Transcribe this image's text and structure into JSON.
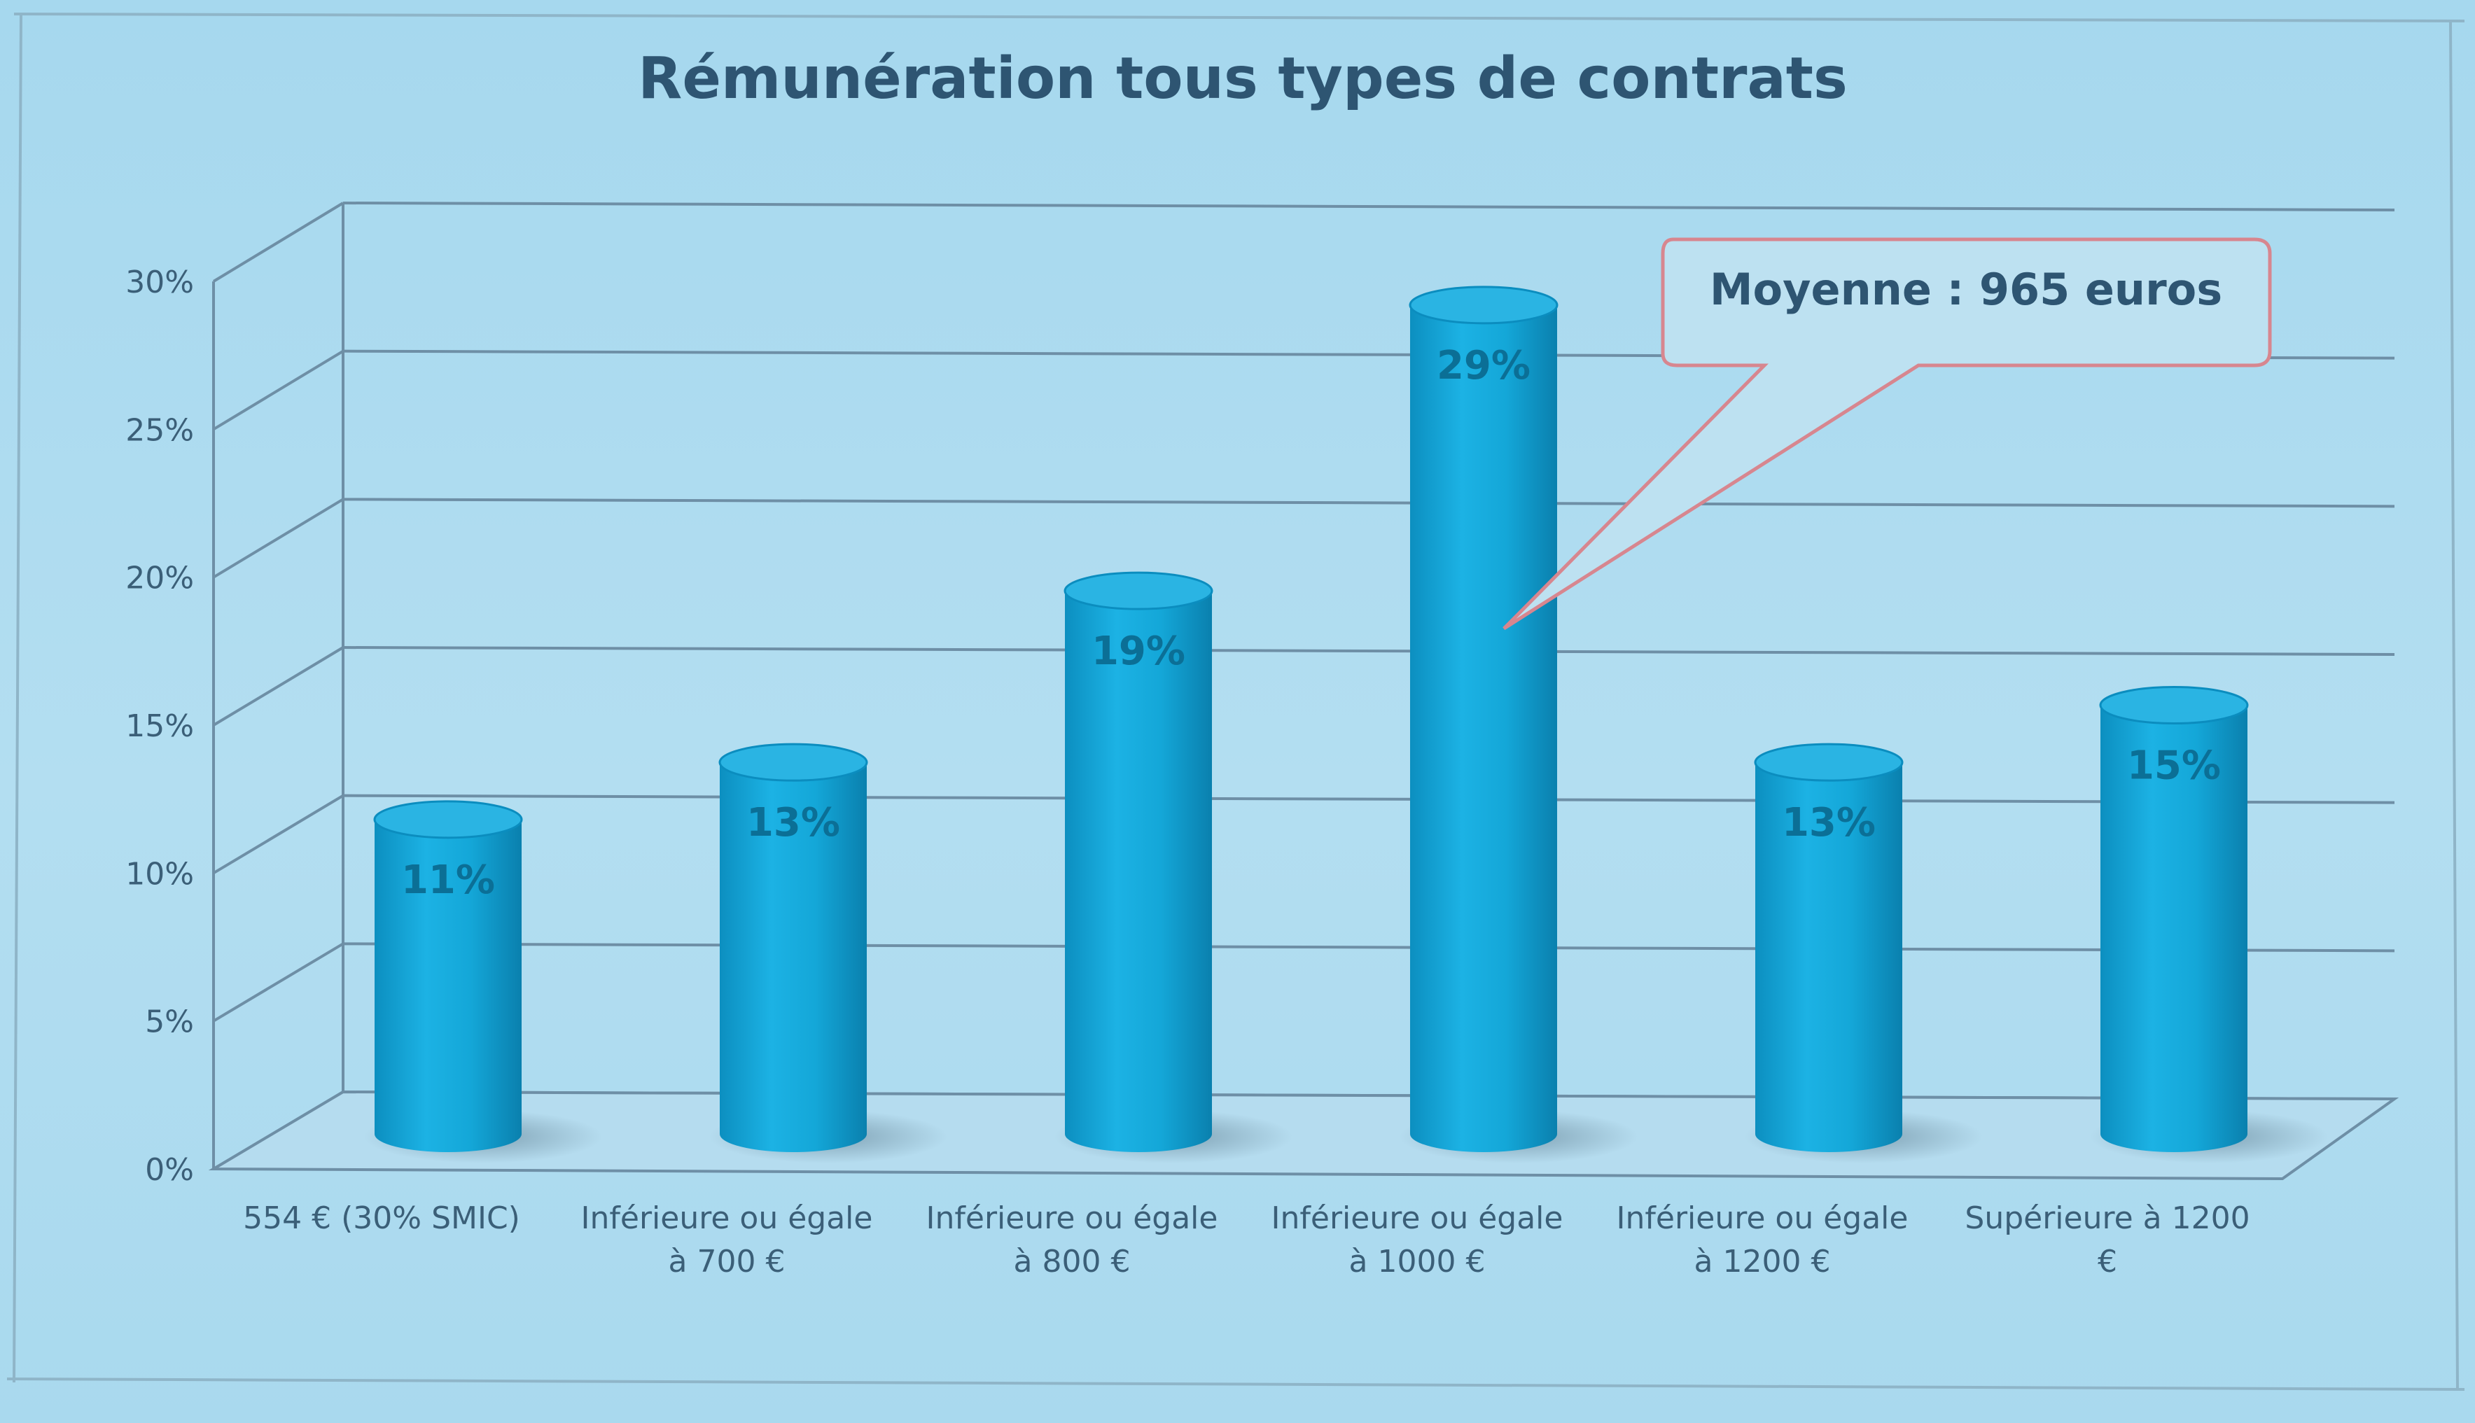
{
  "chart_data": {
    "type": "bar",
    "title": "Rémunération tous types de contrats",
    "categories": [
      [
        "554 € (30% SMIC)"
      ],
      [
        "Inférieure  ou égale",
        "à 700 €"
      ],
      [
        "Inférieure  ou égale",
        "à 800 €"
      ],
      [
        "Inférieure  ou égale",
        "à 1000 €"
      ],
      [
        "Inférieure  ou égale",
        "à 1200 €"
      ],
      [
        "Supérieure à 1200",
        "€"
      ]
    ],
    "values": [
      11,
      13,
      19,
      29,
      13,
      15
    ],
    "data_labels": [
      "11%",
      "13%",
      "19%",
      "29%",
      "13%",
      "15%"
    ],
    "y_ticks": [
      "0%",
      "5%",
      "10%",
      "15%",
      "20%",
      "25%",
      "30%"
    ],
    "ylim": [
      0,
      30
    ],
    "grid": true,
    "bar_shape": "3d-cylinder",
    "annotation": {
      "text": "Moyenne : 965 euros",
      "points_to": "Inférieure  ou égale à 1000 €"
    },
    "colors": {
      "bar": "#14a7d8",
      "bar_dark": "#0a86b6",
      "bar_top": "#2ab4e3",
      "data_label": "#0b6f96",
      "text": "#3b5f78",
      "title": "#2e5572",
      "grid": "#6e8fa6",
      "callout_border": "#d7868f",
      "callout_fill": "#b9dff0"
    }
  }
}
